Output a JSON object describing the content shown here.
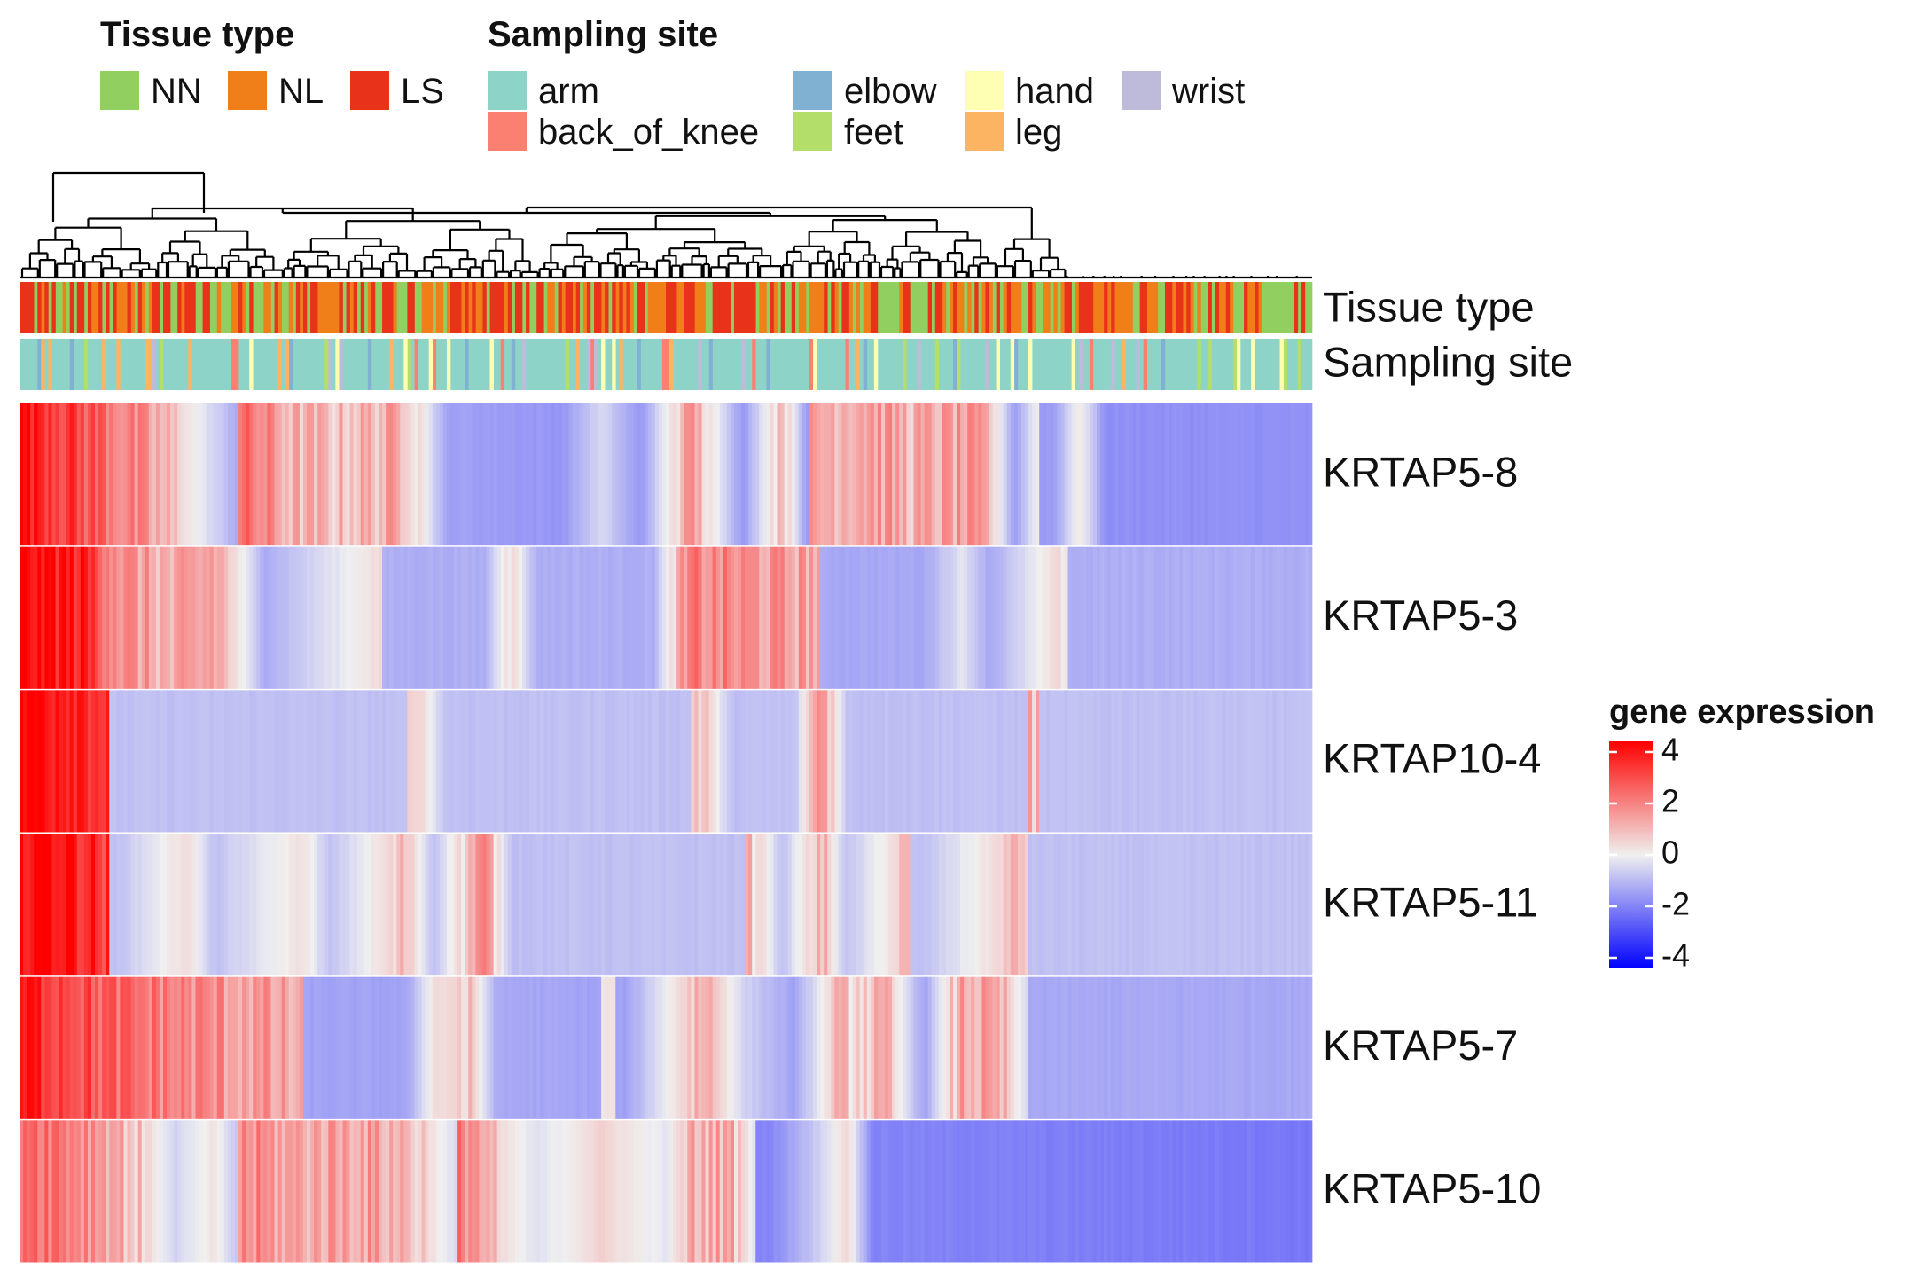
{
  "chart_data": {
    "type": "heatmap",
    "legends": {
      "tissue_type": {
        "title": "Tissue type",
        "items": [
          {
            "label": "NN",
            "color": "#91CF60"
          },
          {
            "label": "NL",
            "color": "#F07F1A"
          },
          {
            "label": "LS",
            "color": "#E8331A"
          }
        ]
      },
      "sampling_site": {
        "title": "Sampling site",
        "items": [
          {
            "label": "arm",
            "color": "#8DD3C7"
          },
          {
            "label": "back_of_knee",
            "color": "#FB8072"
          },
          {
            "label": "elbow",
            "color": "#80B1D3"
          },
          {
            "label": "feet",
            "color": "#B3DE69"
          },
          {
            "label": "hand",
            "color": "#FFFFB3"
          },
          {
            "label": "leg",
            "color": "#FDB462"
          },
          {
            "label": "wrist",
            "color": "#BEBADA"
          }
        ]
      }
    },
    "annotation_rows": [
      "Tissue type",
      "Sampling site"
    ],
    "rows": [
      "KRTAP5-8",
      "KRTAP5-3",
      "KRTAP10-4",
      "KRTAP5-11",
      "KRTAP5-7",
      "KRTAP5-10"
    ],
    "colorbar": {
      "title": "gene expression",
      "ticks": [
        "4",
        "2",
        "0",
        "-2",
        "-4"
      ],
      "range": [
        -4,
        4
      ],
      "colors": {
        "low": "#0000FF",
        "mid": "#F0F0F0",
        "high": "#FF0000"
      }
    },
    "approx_profiles": [
      [
        [
          0.0,
          4
        ],
        [
          0.03,
          3.2
        ],
        [
          0.07,
          2.2
        ],
        [
          0.12,
          0.6
        ],
        [
          0.17,
          -1.2
        ],
        [
          0.18,
          2.0
        ],
        [
          0.21,
          1.0
        ],
        [
          0.24,
          0.8
        ],
        [
          0.3,
          1.2
        ],
        [
          0.33,
          -1.3
        ],
        [
          0.42,
          -1.5
        ],
        [
          0.45,
          -0.4
        ],
        [
          0.48,
          -1.5
        ],
        [
          0.52,
          1.4
        ],
        [
          0.56,
          -1.5
        ],
        [
          0.59,
          1.1
        ],
        [
          0.61,
          -1.5
        ],
        [
          0.62,
          1.2
        ],
        [
          0.66,
          1.5
        ],
        [
          0.69,
          1.0
        ],
        [
          0.73,
          1.3
        ],
        [
          0.75,
          1.0
        ],
        [
          0.77,
          -1.4
        ],
        [
          0.79,
          0.3
        ],
        [
          0.8,
          -1.4
        ],
        [
          0.82,
          0.2
        ],
        [
          0.84,
          -1.6
        ],
        [
          1.0,
          -1.6
        ]
      ],
      [
        [
          0.0,
          4
        ],
        [
          0.05,
          3.4
        ],
        [
          0.08,
          1.6
        ],
        [
          0.12,
          0.9
        ],
        [
          0.15,
          1.4
        ],
        [
          0.19,
          -1.1
        ],
        [
          0.28,
          0.4
        ],
        [
          0.29,
          -1.1
        ],
        [
          0.36,
          -1.1
        ],
        [
          0.38,
          0.6
        ],
        [
          0.4,
          -1.1
        ],
        [
          0.49,
          -1.1
        ],
        [
          0.52,
          1.8
        ],
        [
          0.58,
          1.4
        ],
        [
          0.62,
          1.3
        ],
        [
          0.63,
          -1.2
        ],
        [
          0.7,
          -1.2
        ],
        [
          0.73,
          -0.2
        ],
        [
          0.75,
          -1.2
        ],
        [
          0.81,
          0.6
        ],
        [
          0.82,
          -1.1
        ],
        [
          1.0,
          -1.1
        ]
      ],
      [
        [
          0.0,
          4
        ],
        [
          0.04,
          3.8
        ],
        [
          0.07,
          3.2
        ],
        [
          0.075,
          -0.8
        ],
        [
          0.3,
          -0.8
        ],
        [
          0.31,
          0.5
        ],
        [
          0.33,
          -0.8
        ],
        [
          0.52,
          -0.8
        ],
        [
          0.53,
          0.8
        ],
        [
          0.55,
          -0.8
        ],
        [
          0.6,
          -0.8
        ],
        [
          0.62,
          1.8
        ],
        [
          0.64,
          -0.8
        ],
        [
          0.78,
          -0.8
        ],
        [
          0.79,
          0.9
        ],
        [
          0.8,
          -0.8
        ],
        [
          1.0,
          -0.8
        ]
      ],
      [
        [
          0.0,
          4
        ],
        [
          0.03,
          3.9
        ],
        [
          0.07,
          3.0
        ],
        [
          0.075,
          -0.8
        ],
        [
          0.13,
          0.4
        ],
        [
          0.15,
          -0.8
        ],
        [
          0.22,
          0.3
        ],
        [
          0.24,
          -0.8
        ],
        [
          0.3,
          0.8
        ],
        [
          0.32,
          -0.8
        ],
        [
          0.36,
          1.6
        ],
        [
          0.38,
          -0.8
        ],
        [
          0.56,
          -0.8
        ],
        [
          0.57,
          0.7
        ],
        [
          0.59,
          -0.8
        ],
        [
          0.62,
          1.0
        ],
        [
          0.64,
          -0.8
        ],
        [
          0.69,
          0.8
        ],
        [
          0.7,
          -0.8
        ],
        [
          0.78,
          0.9
        ],
        [
          0.79,
          -0.8
        ],
        [
          1.0,
          -0.8
        ]
      ],
      [
        [
          0.0,
          3.6
        ],
        [
          0.04,
          3.0
        ],
        [
          0.07,
          2.3
        ],
        [
          0.12,
          1.8
        ],
        [
          0.18,
          1.4
        ],
        [
          0.22,
          1.0
        ],
        [
          0.225,
          -1.3
        ],
        [
          0.3,
          -1.3
        ],
        [
          0.32,
          0.3
        ],
        [
          0.35,
          0.6
        ],
        [
          0.37,
          -1.2
        ],
        [
          0.45,
          -1.3
        ],
        [
          0.46,
          0.2
        ],
        [
          0.47,
          -1.3
        ],
        [
          0.53,
          1.2
        ],
        [
          0.56,
          -0.5
        ],
        [
          0.6,
          -1.3
        ],
        [
          0.63,
          0.6
        ],
        [
          0.67,
          0.8
        ],
        [
          0.7,
          -1.3
        ],
        [
          0.73,
          1.3
        ],
        [
          0.76,
          0.9
        ],
        [
          0.78,
          -0.5
        ],
        [
          0.79,
          -1.2
        ],
        [
          1.0,
          -1.2
        ]
      ],
      [
        [
          0.0,
          2.6
        ],
        [
          0.04,
          2.0
        ],
        [
          0.07,
          1.4
        ],
        [
          0.1,
          0.4
        ],
        [
          0.12,
          -0.5
        ],
        [
          0.15,
          0.2
        ],
        [
          0.17,
          -0.8
        ],
        [
          0.18,
          1.6
        ],
        [
          0.21,
          1.2
        ],
        [
          0.26,
          1.4
        ],
        [
          0.3,
          1.0
        ],
        [
          0.34,
          -0.5
        ],
        [
          0.35,
          1.8
        ],
        [
          0.37,
          0.4
        ],
        [
          0.4,
          -0.3
        ],
        [
          0.45,
          0.5
        ],
        [
          0.5,
          -0.2
        ],
        [
          0.52,
          1.0
        ],
        [
          0.55,
          1.2
        ],
        [
          0.57,
          -0.3
        ],
        [
          0.58,
          -1.8
        ],
        [
          0.62,
          -0.5
        ],
        [
          0.64,
          0.5
        ],
        [
          0.66,
          -1.8
        ],
        [
          1.0,
          -2.0
        ]
      ]
    ]
  }
}
